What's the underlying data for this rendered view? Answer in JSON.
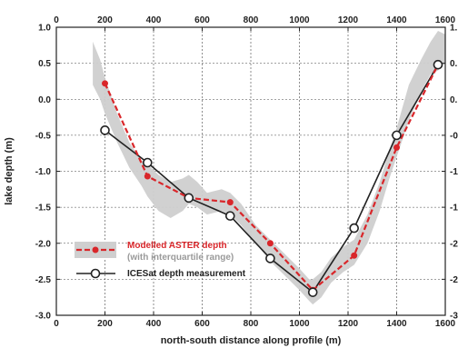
{
  "chart_data": {
    "type": "line",
    "xlabel": "north-south distance along profile (m)",
    "ylabel": "lake depth (m)",
    "xlim": [
      0,
      1600
    ],
    "ylim": [
      -3.0,
      1.0
    ],
    "x_ticks": [
      0,
      200,
      400,
      600,
      800,
      1000,
      1200,
      1400,
      1600
    ],
    "y_ticks": [
      -3.0,
      -2.5,
      -2.0,
      -1.5,
      -1.0,
      -0.5,
      0.0,
      0.5,
      1.0
    ],
    "x_tick_labels": [
      "0",
      "200",
      "400",
      "600",
      "800",
      "1000",
      "1200",
      "1400",
      "1600"
    ],
    "y_tick_labels": [
      "-3.0",
      "-2.5",
      "-2.0",
      "-1.5",
      "-1.0",
      "-0.5",
      "0.0",
      "0.5",
      "1.0"
    ],
    "right_tick_labels": [
      "-3",
      "-2",
      "-2",
      "-1",
      "-1",
      "-0",
      "0.",
      "0.",
      "1."
    ],
    "grid": "dashed",
    "legend_position": "bottom-left",
    "series": [
      {
        "name": "Modelled ASTER depth",
        "sublabel": "(with interquartile range)",
        "color": "#d9262a",
        "style": "dashed-filled-dots",
        "x": [
          200,
          375,
          545,
          715,
          880,
          1055,
          1225,
          1400,
          1570
        ],
        "y": [
          0.22,
          -1.07,
          -1.37,
          -1.43,
          -2.0,
          -2.65,
          -2.17,
          -0.67,
          0.48
        ]
      },
      {
        "name": "ICESat depth measurement",
        "color": "#222222",
        "style": "solid-open-circles",
        "x": [
          200,
          375,
          545,
          715,
          880,
          1055,
          1225,
          1400,
          1570
        ],
        "y": [
          -0.43,
          -0.88,
          -1.37,
          -1.62,
          -2.21,
          -2.68,
          -1.79,
          -0.5,
          0.48
        ]
      }
    ],
    "range_band": {
      "name": "interquartile range",
      "color": "#cfcfcf",
      "x": [
        150,
        180,
        200,
        250,
        300,
        350,
        375,
        420,
        470,
        520,
        545,
        580,
        620,
        680,
        715,
        760,
        820,
        880,
        940,
        1000,
        1040,
        1055,
        1090,
        1130,
        1180,
        1225,
        1280,
        1330,
        1370,
        1400,
        1450,
        1500,
        1540,
        1570,
        1600
      ],
      "low": [
        0.2,
        0.0,
        -0.2,
        -0.6,
        -0.95,
        -1.2,
        -1.35,
        -1.55,
        -1.65,
        -1.55,
        -1.45,
        -1.5,
        -1.6,
        -1.55,
        -1.6,
        -1.75,
        -2.0,
        -2.25,
        -2.45,
        -2.65,
        -2.8,
        -2.85,
        -2.75,
        -2.55,
        -2.4,
        -2.3,
        -2.0,
        -1.55,
        -1.1,
        -0.8,
        -0.3,
        0.1,
        0.35,
        0.4,
        0.5
      ],
      "high": [
        0.8,
        0.55,
        0.3,
        -0.2,
        -0.6,
        -0.85,
        -0.9,
        -1.05,
        -1.15,
        -1.1,
        -1.05,
        -1.15,
        -1.3,
        -1.25,
        -1.3,
        -1.45,
        -1.75,
        -1.95,
        -2.15,
        -2.35,
        -2.5,
        -2.5,
        -2.4,
        -2.2,
        -2.05,
        -1.95,
        -1.6,
        -1.15,
        -0.7,
        -0.4,
        0.2,
        0.55,
        0.8,
        0.95,
        0.9
      ]
    }
  }
}
